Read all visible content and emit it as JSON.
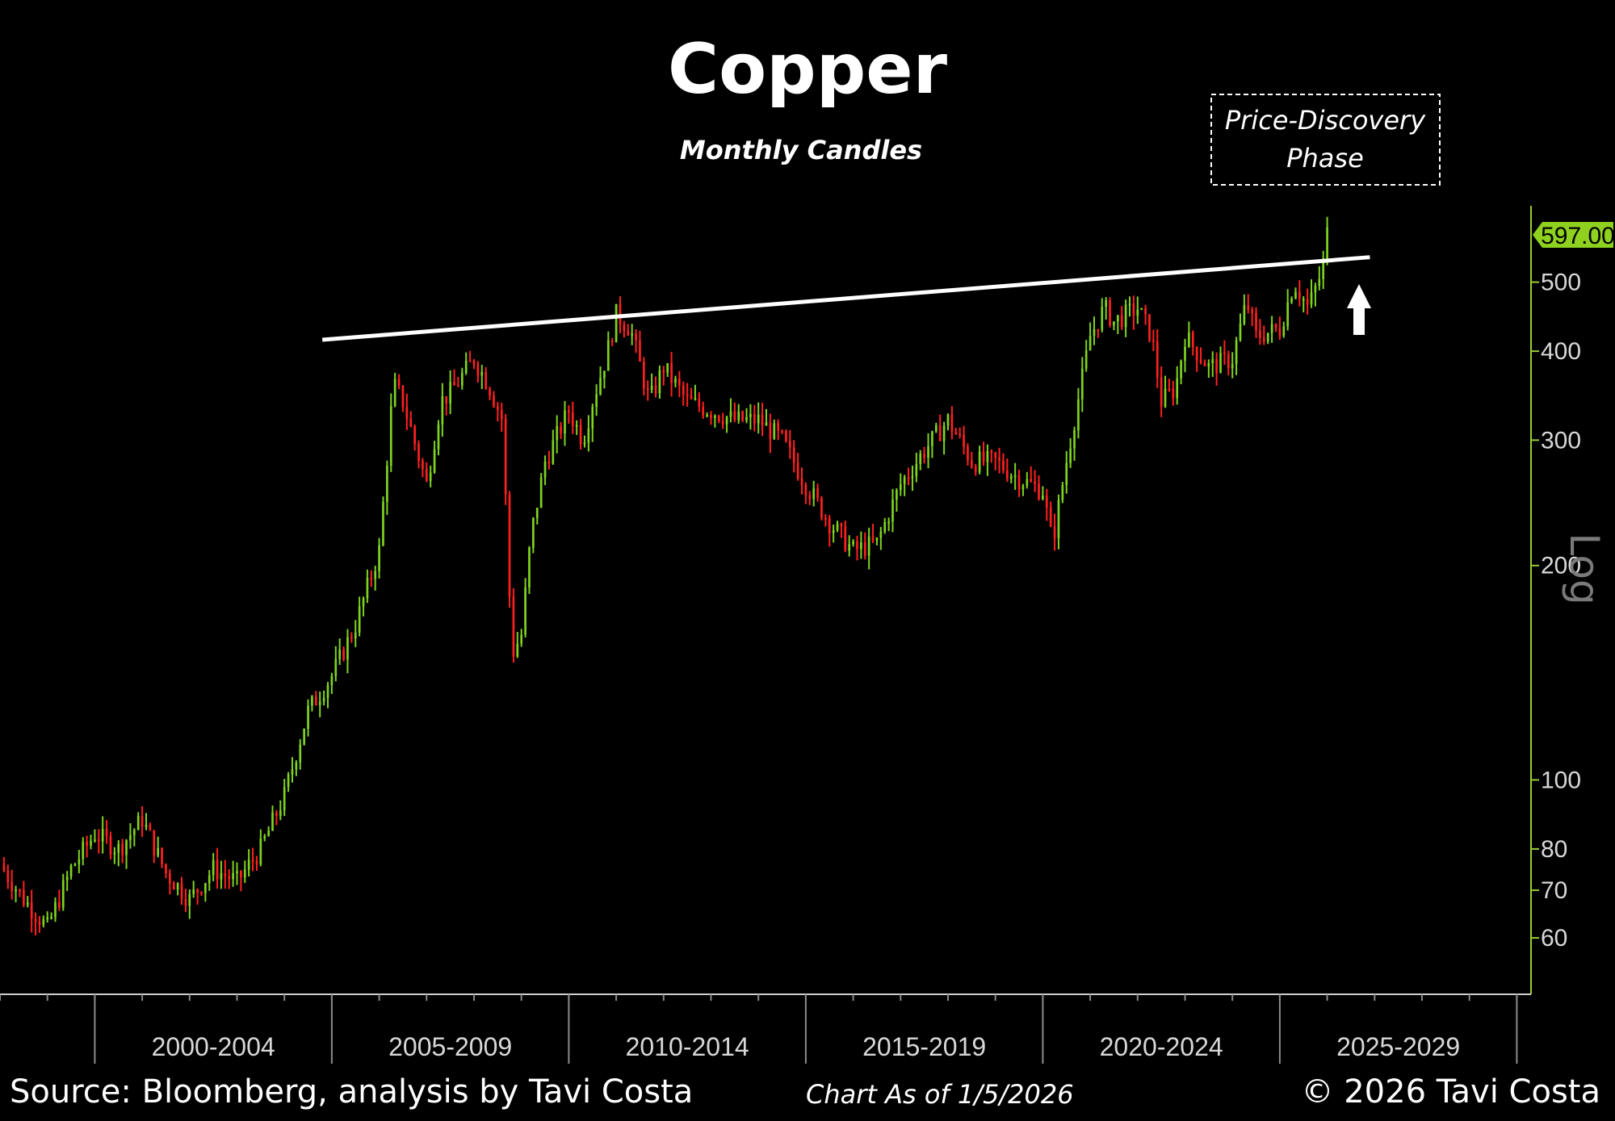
{
  "chart_data": {
    "type": "candlestick",
    "title": "Copper",
    "subtitle": "Monthly Candles",
    "annotation": "Price-Discovery Phase",
    "last_price_label": "597.00",
    "scale_label": "Log",
    "y_ticks": [
      60,
      70,
      80,
      100,
      200,
      300,
      400,
      500
    ],
    "y_range": [
      50,
      640
    ],
    "x_range": [
      1998.0,
      2030.3
    ],
    "period_labels": [
      "2000-2004",
      "2005-2009",
      "2010-2014",
      "2015-2019",
      "2020-2024",
      "2025-2029"
    ],
    "period_starts": [
      2000,
      2005,
      2010,
      2015,
      2020,
      2025,
      2030
    ],
    "trendline": {
      "from": [
        2004.8,
        415
      ],
      "to": [
        2026.9,
        542
      ]
    },
    "series": {
      "t": [
        1998.0,
        1998.5,
        1999.0,
        1999.5,
        2000.0,
        2000.5,
        2001.0,
        2001.5,
        2002.0,
        2002.5,
        2003.0,
        2003.5,
        2004.0,
        2004.5,
        2005.0,
        2005.5,
        2006.0,
        2006.3,
        2006.5,
        2007.0,
        2007.3,
        2007.5,
        2008.0,
        2008.3,
        2008.6,
        2008.8,
        2009.0,
        2009.2,
        2009.5,
        2010.0,
        2010.3,
        2010.5,
        2010.8,
        2011.0,
        2011.3,
        2011.7,
        2012.0,
        2012.5,
        2013.0,
        2013.5,
        2014.0,
        2014.5,
        2015.0,
        2015.5,
        2016.0,
        2016.5,
        2017.0,
        2017.5,
        2018.0,
        2018.5,
        2019.0,
        2019.5,
        2020.0,
        2020.2,
        2020.5,
        2021.0,
        2021.3,
        2021.5,
        2022.0,
        2022.3,
        2022.5,
        2022.8,
        2023.0,
        2023.5,
        2024.0,
        2024.3,
        2024.5,
        2025.0,
        2025.3,
        2025.6,
        2025.9,
        2026.0
      ],
      "close": [
        76,
        68,
        62,
        75,
        84,
        80,
        88,
        74,
        68,
        75,
        72,
        80,
        95,
        125,
        140,
        165,
        210,
        360,
        340,
        260,
        340,
        350,
        390,
        360,
        320,
        150,
        160,
        220,
        280,
        330,
        300,
        340,
        395,
        450,
        430,
        340,
        380,
        340,
        330,
        320,
        320,
        300,
        260,
        230,
        210,
        215,
        260,
        290,
        320,
        280,
        280,
        265,
        255,
        215,
        280,
        420,
        460,
        440,
        460,
        420,
        340,
        355,
        420,
        380,
        390,
        470,
        420,
        430,
        500,
        460,
        520,
        597
      ]
    }
  },
  "footer": {
    "source": "Source: Bloomberg, analysis by Tavi Costa",
    "asof": "Chart As of 1/5/2026",
    "copyright": "© 2026 Tavi Costa"
  },
  "colors": {
    "up": "#7ed321",
    "down": "#ff2020",
    "axis": "#9acd32",
    "label_bg": "#8fd11f"
  }
}
